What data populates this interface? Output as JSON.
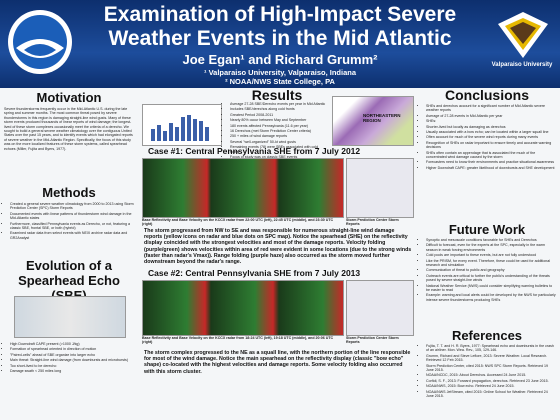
{
  "header": {
    "title": [
      "Examination of High-Impact Severe",
      "Weather Events in the Mid Atlantic"
    ],
    "authors": "Joe Egan¹ and Richard Grumm²",
    "affiliations": [
      "¹ Valparaiso University, Valparaiso, Indiana",
      "² NOAA/NWS State College, PA"
    ],
    "logo_right": "Valparaiso University"
  },
  "motivation": {
    "heading": "Motivation",
    "text": "Severe thunderstorms frequently occur in the Mid-Atlantic U.S. during the late spring and summer months. The most common threat posed by severe thunderstorms in this region is damaging straight-line wind gusts. Many of these storm events produced thousands of linear reports of wind damage; the longest-lived of these storm complexes occasionally meet the criteria of a derecho. We sought to build a general severe weather climatology over the contiguous United States over the past 15 years, and to identify events which had elongated reports of severe weather in the Mid-Atlantic Region. Specifically, the focus of this study was on the more localized features of these storm systems, called spearhead echoes (Miller, Fujita and Byers, 1977)."
  },
  "methods": {
    "heading": "Methods",
    "bullets": [
      "Created a general severe weather climatology from 2000 to 2013 using Storm Prediction Center (SPC) Storm Reports",
      "Documented events with linear patterns of thunderstorm wind damage in the Mid-Atlantic states",
      "Furthermore, classified Pennsylvania events as Derecho, or not, featuring a classic SBE, frontal SBE, or both (hybrid)",
      "Examined radar data from select events with NEXI archive radar data and GR2Analyst"
    ]
  },
  "evolution": {
    "heading": "Evolution of a Spearhead Echo (SBE)",
    "bullets": [
      "High Downdraft CAPE present (>1000 J/kg)",
      "Formation of spearhead oriented in direction of motion",
      "\"Paired-cells\" ahead of SBE organize into larger echo",
      "Main threat: Straight-line wind damage (from downbursts and microbursts)",
      "Too short-lived to be derecho",
      "Damage swath < 250 miles long"
    ]
  },
  "results": {
    "heading": "Results",
    "bullets": [
      "Average 27-28 SBE/Derecho events per year in Mid Atlantic",
      "Includes SBE/derechos along cold fronts",
      "Greatest Period 2008-2011",
      "Nearly 80% occur between May and September",
      "180 events affected Pennsylvania (11.6 per year)",
      "16 Derechos (met Storm Prediction Center criteria)",
      "250 + miles of wind damage reports",
      "Several \"well-organized\" 50-kt wind gusts",
      "Remaining events (78) were SBEs associated with cold fronts",
      "Focus of study was on classic SBE events"
    ],
    "map_label": "NORTHEASTERN REGION"
  },
  "case1": {
    "heading": "Case #1: Central Pennsylvania SHE from 7 July 2012",
    "captions": [
      "Base Reflectivity and Base Velocity on the KCCX radar from 22:00 UTC (left), 22:45 UTC (middle), and 23:30 UTC (right)",
      "Storm Prediction Center Storm Reports"
    ],
    "text": "The storm progressed from NW to SE and was responsible for numerous straight-line wind damage reports (yellow icons on radar and blue dots on SPC map). Notice the spearhead (SHE) on the reflectivity display coincided with the strongest velocities and most of the damage reports. Velocity folding (purple/green) shows velocities within area of red were evident in some locations (due to the strong winds (faster than radar's Vmax)). Range folding (purple haze) also occurred as the storm moved further downstream beyond the radar's range."
  },
  "case2": {
    "heading": "Case #2: Central Pennsylvania SHE from 7 July 2013",
    "captions": [
      "Base Reflectivity and Base Velocity on the KCCX radar from 18:24 UTC (left), 19:18 UTC (middle), and 20:06 UTC (right)",
      "Storm Prediction Center Storm Reports"
    ],
    "text": "The storm complex progressed to the NE as a squall line, with the northern portion of the line responsible for most of the wind damage. Notice the main spearhead on the reflectivity display (classic \"bow echo\" shape) co-located with the highest velocities and damage reports. Some velocity folding also occurred with this storm cluster."
  },
  "conclusions": {
    "heading": "Conclusions",
    "bullets": [
      "SHEs and derechos account for a significant number of Mid Atlantic severe weather reports",
      "Average of 27-28 events in Mid Atlantic per year",
      "SHEs:",
      "Shorter-lived but locally as damaging as derechos",
      "Usually associated with a bow echo; can be located within a larger squall line",
      "Often account for much of the severe wind reports during many events",
      "Recognition of SHEs on radar important to ensure timely and accurate warning decisions",
      "SHEs often contain an appendage that is associated the much of the concentrated wind damage caused by the storm",
      "Forecasters need to know their environments and practice situational awareness",
      "Higher Downdraft CAPE: greater likelihood of downbursts and SHE development"
    ]
  },
  "future": {
    "heading": "Future Work",
    "bullets": [
      "Synoptic and mesoscale conditions favorable for SHEs and Derechos",
      "Difficult to forecast, even for the experts at the SPC, especially in the warm season in weak forcing environments",
      "Cold pools are important to these events, but are not fully understood",
      "Like the PRISM, for every event. Therefore, these could be used for additional research and simulation",
      "Communication of threat to public and geography",
      "Outreach events are critical to further the public's understanding of the threats posed by severe straight-line winds",
      "National Weather Service (NWS) could consider simplifying warning bulletins to be easier to read",
      "Example: warning and local alerts could be developed by the NWS for particularly intense severe thunderstorms producing SHEs"
    ]
  },
  "references": {
    "heading": "References",
    "items": [
      "Fujita, T. T. and H. R. Byers, 1977: Spearhead echo and downbursts in the crash of an airliner. Mon. Wea. Rev., 105, 129-146.",
      "Grumm, Richard and Steve Leflore, 2013: Severe Weather. Local Research. Retrieved 12 Feb 2015.",
      "Storm Prediction Center, cited 2015: NWS SPC Storm Reports. Retrieved 19 June 2015.",
      "NOAA/NCDC, 2015: About Derechos. Accessed 24 June 2015.",
      "Corfidi, S. F., 2013: Forward propagation, derechos. Retrieved 23 June 2015.",
      "NOAA/NWS, 2015: Bow echo. Retrieved 24 June 2015.",
      "NOAA/NWS JetStream, cited 2015: Online School for Weather. Retrieved 24 June 2015."
    ]
  }
}
